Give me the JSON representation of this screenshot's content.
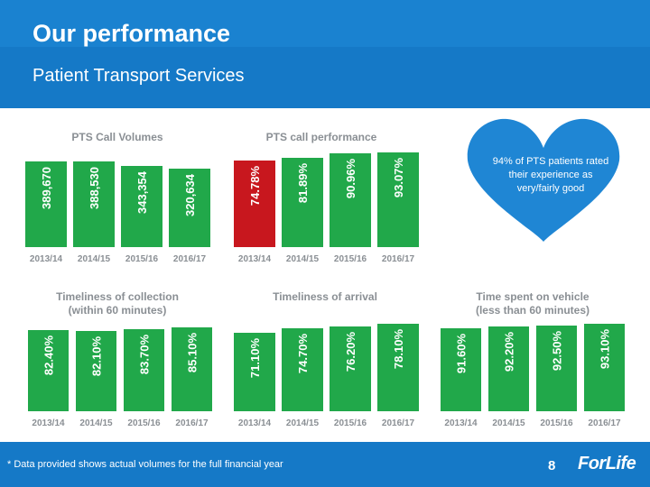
{
  "header": {
    "title": "Our performance",
    "subtitle": "Patient Transport Services"
  },
  "heart": {
    "text": "94% of PTS patients rated their experience as very/fairly good",
    "color": "#1f86d4"
  },
  "footer": {
    "footnote": "* Data provided shows actual volumes for the full financial year",
    "page_number": "8",
    "logo_text": "ForLife"
  },
  "colors": {
    "green": "#21a84a",
    "red": "#c8171e",
    "header_blue": "#1579c7",
    "label_gray": "#8a8f94"
  },
  "chart_data": [
    {
      "type": "bar",
      "id": "call-volumes",
      "title": "PTS Call Volumes",
      "categories": [
        "2013/14",
        "2014/15",
        "2015/16",
        "2016/17"
      ],
      "values": [
        389670,
        388530,
        343354,
        320634
      ],
      "labels": [
        "389,670",
        "388,530",
        "343,354",
        "320,634"
      ],
      "highlight": []
    },
    {
      "type": "bar",
      "id": "call-performance",
      "title": "PTS call performance",
      "categories": [
        "2013/14",
        "2014/15",
        "2015/16",
        "2016/17"
      ],
      "values": [
        74.78,
        81.89,
        90.96,
        93.07
      ],
      "labels": [
        "74.78%",
        "81.89%",
        "90.96%",
        "93.07%"
      ],
      "highlight": [
        0
      ]
    },
    {
      "type": "bar",
      "id": "timeliness-collection",
      "title": "Timeliness of collection",
      "subtitle": "(within 60 minutes)",
      "categories": [
        "2013/14",
        "2014/15",
        "2015/16",
        "2016/17"
      ],
      "values": [
        82.4,
        82.1,
        83.7,
        85.1
      ],
      "labels": [
        "82.40%",
        "82.10%",
        "83.70%",
        "85.10%"
      ],
      "highlight": []
    },
    {
      "type": "bar",
      "id": "timeliness-arrival",
      "title": "Timeliness of arrival",
      "categories": [
        "2013/14",
        "2014/15",
        "2015/16",
        "2016/17"
      ],
      "values": [
        71.1,
        74.7,
        76.2,
        78.1
      ],
      "labels": [
        "71.10%",
        "74.70%",
        "76.20%",
        "78.10%"
      ],
      "highlight": []
    },
    {
      "type": "bar",
      "id": "time-on-vehicle",
      "title": "Time spent on vehicle",
      "subtitle": "(less than 60 minutes)",
      "categories": [
        "2013/14",
        "2014/15",
        "2015/16",
        "2016/17"
      ],
      "values": [
        91.6,
        92.2,
        92.5,
        93.1
      ],
      "labels": [
        "91.60%",
        "92.20%",
        "92.50%",
        "93.10%"
      ],
      "highlight": []
    }
  ]
}
